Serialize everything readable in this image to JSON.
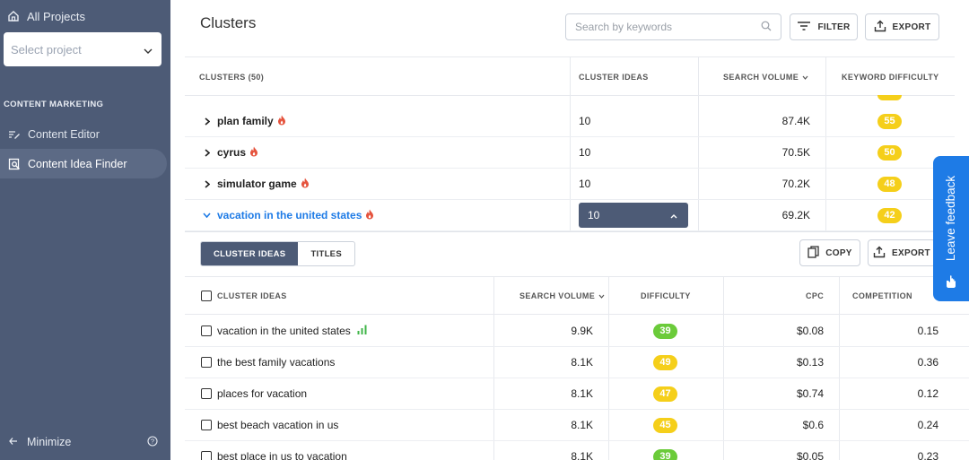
{
  "sidebar": {
    "all_projects": "All Projects",
    "select_project_placeholder": "Select project",
    "section_label": "CONTENT MARKETING",
    "items": [
      {
        "label": "Content Editor",
        "icon": "edit-lines-icon"
      },
      {
        "label": "Content Idea Finder",
        "icon": "search-doc-icon",
        "active": true
      }
    ],
    "minimize": "Minimize"
  },
  "header": {
    "title": "Clusters",
    "search_placeholder": "Search by keywords",
    "filter_label": "FILTER",
    "export_label": "EXPORT"
  },
  "clusters_table": {
    "columns": [
      "CLUSTERS (50)",
      "CLUSTER IDEAS",
      "SEARCH VOLUME",
      "KEYWORD DIFFICULTY"
    ],
    "rows": [
      {
        "name": "plan family",
        "ideas": "10",
        "volume": "87.4K",
        "difficulty": "55",
        "expanded": false
      },
      {
        "name": "cyrus",
        "ideas": "10",
        "volume": "70.5K",
        "difficulty": "50",
        "expanded": false
      },
      {
        "name": "simulator game",
        "ideas": "10",
        "volume": "70.2K",
        "difficulty": "48",
        "expanded": false
      },
      {
        "name": "vacation in the united states",
        "ideas": "10",
        "volume": "69.2K",
        "difficulty": "42",
        "expanded": true
      }
    ]
  },
  "sub_panel": {
    "tabs": [
      "CLUSTER IDEAS",
      "TITLES"
    ],
    "copy_label": "COPY",
    "export_label": "EXPORT",
    "columns": [
      "CLUSTER IDEAS",
      "SEARCH VOLUME",
      "DIFFICULTY",
      "CPC",
      "COMPETITION"
    ],
    "rows": [
      {
        "keyword": "vacation in the united states",
        "volume": "9.9K",
        "difficulty": "39",
        "difficulty_color": "green",
        "cpc": "$0.08",
        "competition": "0.15",
        "has_chart_icon": true
      },
      {
        "keyword": "the best family vacations",
        "volume": "8.1K",
        "difficulty": "49",
        "difficulty_color": "yellow",
        "cpc": "$0.13",
        "competition": "0.36"
      },
      {
        "keyword": "places for vacation",
        "volume": "8.1K",
        "difficulty": "47",
        "difficulty_color": "yellow",
        "cpc": "$0.74",
        "competition": "0.12"
      },
      {
        "keyword": "best beach vacation in us",
        "volume": "8.1K",
        "difficulty": "45",
        "difficulty_color": "yellow",
        "cpc": "$0.6",
        "competition": "0.24"
      },
      {
        "keyword": "best place in us to vacation",
        "volume": "8.1K",
        "difficulty": "39",
        "difficulty_color": "green",
        "cpc": "$0.05",
        "competition": "0.23"
      }
    ]
  },
  "feedback": {
    "label": "Leave feedback"
  },
  "colors": {
    "sidebar": "#4d5b76",
    "accent_blue": "#1e7be6",
    "badge_yellow": "#f5cf1a",
    "badge_green": "#6bcb3a",
    "fire": "#e5533d"
  }
}
